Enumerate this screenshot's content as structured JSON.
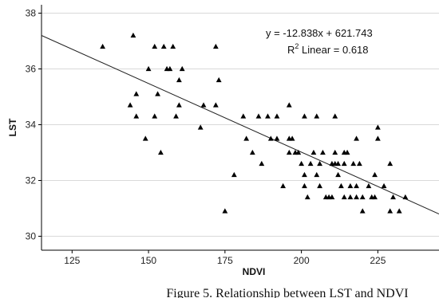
{
  "caption": "Figure 5. Relationship between LST and NDVI",
  "chart_data": {
    "type": "scatter",
    "xlabel": "NDVI",
    "ylabel": "LST",
    "xlim": [
      115,
      245
    ],
    "ylim": [
      29.5,
      38.3
    ],
    "x_ticks": [
      125,
      150,
      175,
      200,
      225
    ],
    "y_ticks": [
      30,
      32,
      34,
      36,
      38
    ],
    "grid": "horizontal",
    "annotations": {
      "equation": "y = -12.838x + 621.743",
      "r2_prefix": "R",
      "r2_sup": "2",
      "r2_suffix": " Linear = 0.618"
    },
    "fit_line": {
      "x": [
        115,
        245
      ],
      "y": [
        37.2,
        30.8
      ]
    },
    "marker": "triangle",
    "color": "#000000",
    "points": [
      {
        "x": 135,
        "y": 36.8
      },
      {
        "x": 145,
        "y": 37.2
      },
      {
        "x": 146,
        "y": 35.1
      },
      {
        "x": 146,
        "y": 34.3
      },
      {
        "x": 144,
        "y": 34.7
      },
      {
        "x": 149,
        "y": 33.5
      },
      {
        "x": 150,
        "y": 36.0
      },
      {
        "x": 152,
        "y": 36.8
      },
      {
        "x": 153,
        "y": 35.1
      },
      {
        "x": 152,
        "y": 34.3
      },
      {
        "x": 154,
        "y": 33.0
      },
      {
        "x": 155,
        "y": 36.8
      },
      {
        "x": 156,
        "y": 36.0
      },
      {
        "x": 157,
        "y": 36.0
      },
      {
        "x": 158,
        "y": 36.8
      },
      {
        "x": 159,
        "y": 34.3
      },
      {
        "x": 160,
        "y": 34.7
      },
      {
        "x": 160,
        "y": 35.6
      },
      {
        "x": 161,
        "y": 36.0
      },
      {
        "x": 167,
        "y": 33.9
      },
      {
        "x": 168,
        "y": 34.7
      },
      {
        "x": 172,
        "y": 36.8
      },
      {
        "x": 172,
        "y": 34.7
      },
      {
        "x": 173,
        "y": 35.6
      },
      {
        "x": 175,
        "y": 30.9
      },
      {
        "x": 178,
        "y": 32.2
      },
      {
        "x": 181,
        "y": 34.3
      },
      {
        "x": 182,
        "y": 33.5
      },
      {
        "x": 184,
        "y": 33.0
      },
      {
        "x": 186,
        "y": 34.3
      },
      {
        "x": 187,
        "y": 32.6
      },
      {
        "x": 189,
        "y": 34.3
      },
      {
        "x": 190,
        "y": 33.5
      },
      {
        "x": 192,
        "y": 34.3
      },
      {
        "x": 192,
        "y": 33.5
      },
      {
        "x": 194,
        "y": 31.8
      },
      {
        "x": 196,
        "y": 34.7
      },
      {
        "x": 196,
        "y": 33.5
      },
      {
        "x": 196,
        "y": 33.0
      },
      {
        "x": 197,
        "y": 33.5
      },
      {
        "x": 198,
        "y": 33.0
      },
      {
        "x": 199,
        "y": 33.0
      },
      {
        "x": 200,
        "y": 32.6
      },
      {
        "x": 201,
        "y": 34.3
      },
      {
        "x": 201,
        "y": 32.2
      },
      {
        "x": 201,
        "y": 31.8
      },
      {
        "x": 202,
        "y": 31.4
      },
      {
        "x": 203,
        "y": 32.6
      },
      {
        "x": 204,
        "y": 33.0
      },
      {
        "x": 205,
        "y": 34.3
      },
      {
        "x": 205,
        "y": 32.2
      },
      {
        "x": 206,
        "y": 32.6
      },
      {
        "x": 206,
        "y": 31.8
      },
      {
        "x": 207,
        "y": 33.0
      },
      {
        "x": 208,
        "y": 31.4
      },
      {
        "x": 209,
        "y": 31.4
      },
      {
        "x": 210,
        "y": 32.6
      },
      {
        "x": 210,
        "y": 31.4
      },
      {
        "x": 211,
        "y": 34.3
      },
      {
        "x": 211,
        "y": 33.0
      },
      {
        "x": 211,
        "y": 32.6
      },
      {
        "x": 212,
        "y": 32.2
      },
      {
        "x": 212,
        "y": 32.6
      },
      {
        "x": 213,
        "y": 31.8
      },
      {
        "x": 214,
        "y": 33.0
      },
      {
        "x": 214,
        "y": 32.6
      },
      {
        "x": 214,
        "y": 31.4
      },
      {
        "x": 215,
        "y": 33.0
      },
      {
        "x": 216,
        "y": 31.8
      },
      {
        "x": 216,
        "y": 31.4
      },
      {
        "x": 217,
        "y": 32.6
      },
      {
        "x": 218,
        "y": 33.5
      },
      {
        "x": 218,
        "y": 31.8
      },
      {
        "x": 218,
        "y": 31.4
      },
      {
        "x": 219,
        "y": 32.6
      },
      {
        "x": 220,
        "y": 30.9
      },
      {
        "x": 220,
        "y": 31.4
      },
      {
        "x": 222,
        "y": 31.8
      },
      {
        "x": 223,
        "y": 31.4
      },
      {
        "x": 224,
        "y": 31.4
      },
      {
        "x": 224,
        "y": 32.2
      },
      {
        "x": 225,
        "y": 33.5
      },
      {
        "x": 225,
        "y": 33.9
      },
      {
        "x": 227,
        "y": 31.8
      },
      {
        "x": 229,
        "y": 32.6
      },
      {
        "x": 229,
        "y": 30.9
      },
      {
        "x": 230,
        "y": 31.4
      },
      {
        "x": 232,
        "y": 30.9
      },
      {
        "x": 234,
        "y": 31.4
      }
    ]
  }
}
